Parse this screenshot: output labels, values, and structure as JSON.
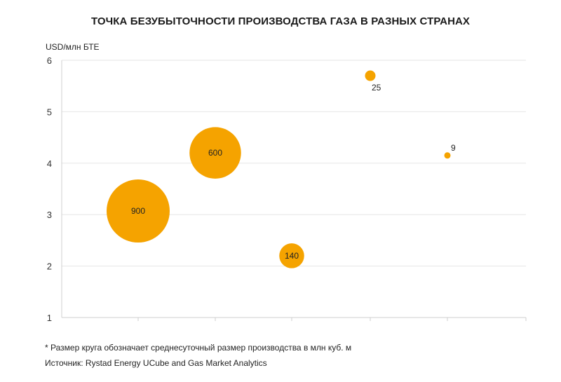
{
  "chart_data": {
    "type": "scatter",
    "title": "ТОЧКА БЕЗУБЫТОЧНОСТИ ПРОИЗВОДСТВА ГАЗА В РАЗНЫХ СТРАНАХ",
    "ylabel": "USD/млн БТЕ",
    "ylim": [
      1,
      6
    ],
    "yticks": [
      "1",
      "2",
      "3",
      "4",
      "5",
      "6"
    ],
    "grid": true,
    "bubble_color": "#f5a300",
    "points": [
      {
        "x": 1,
        "y": 3.07,
        "size": 900,
        "label": "900"
      },
      {
        "x": 2,
        "y": 4.2,
        "size": 600,
        "label": "600"
      },
      {
        "x": 3,
        "y": 2.2,
        "size": 140,
        "label": "140"
      },
      {
        "x": 4,
        "y": 5.7,
        "size": 25,
        "label": "25"
      },
      {
        "x": 5,
        "y": 4.15,
        "size": 9,
        "label": "9"
      }
    ]
  },
  "footnote": "* Размер круга обозначает среднесуточный размер производства в млн куб. м",
  "source": "Источник: Rystad Energy UCube and Gas Market Analytics"
}
